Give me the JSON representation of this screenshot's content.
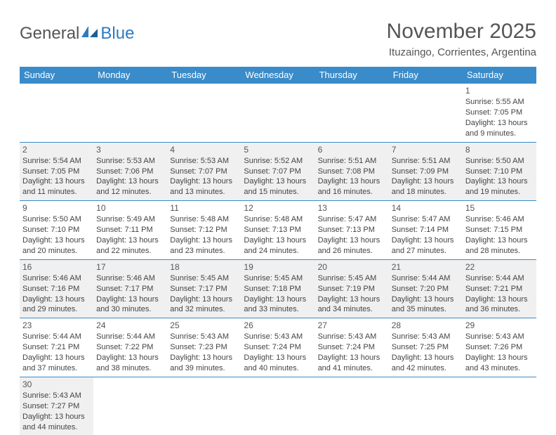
{
  "brand": {
    "part1": "General",
    "part2": "Blue"
  },
  "title": "November 2025",
  "location": "Ituzaingo, Corrientes, Argentina",
  "colors": {
    "header_bg": "#3a8bc9",
    "header_fg": "#ffffff",
    "shade_bg": "#f0f0f0",
    "rule": "#3a8bc9",
    "text": "#444444",
    "title": "#555555"
  },
  "weekdays": [
    "Sunday",
    "Monday",
    "Tuesday",
    "Wednesday",
    "Thursday",
    "Friday",
    "Saturday"
  ],
  "weeks": [
    [
      null,
      null,
      null,
      null,
      null,
      null,
      {
        "n": "1",
        "sr": "Sunrise: 5:55 AM",
        "ss": "Sunset: 7:05 PM",
        "dl": "Daylight: 13 hours and 9 minutes.",
        "shade": false
      }
    ],
    [
      {
        "n": "2",
        "sr": "Sunrise: 5:54 AM",
        "ss": "Sunset: 7:05 PM",
        "dl": "Daylight: 13 hours and 11 minutes.",
        "shade": true
      },
      {
        "n": "3",
        "sr": "Sunrise: 5:53 AM",
        "ss": "Sunset: 7:06 PM",
        "dl": "Daylight: 13 hours and 12 minutes.",
        "shade": true
      },
      {
        "n": "4",
        "sr": "Sunrise: 5:53 AM",
        "ss": "Sunset: 7:07 PM",
        "dl": "Daylight: 13 hours and 13 minutes.",
        "shade": true
      },
      {
        "n": "5",
        "sr": "Sunrise: 5:52 AM",
        "ss": "Sunset: 7:07 PM",
        "dl": "Daylight: 13 hours and 15 minutes.",
        "shade": true
      },
      {
        "n": "6",
        "sr": "Sunrise: 5:51 AM",
        "ss": "Sunset: 7:08 PM",
        "dl": "Daylight: 13 hours and 16 minutes.",
        "shade": true
      },
      {
        "n": "7",
        "sr": "Sunrise: 5:51 AM",
        "ss": "Sunset: 7:09 PM",
        "dl": "Daylight: 13 hours and 18 minutes.",
        "shade": true
      },
      {
        "n": "8",
        "sr": "Sunrise: 5:50 AM",
        "ss": "Sunset: 7:10 PM",
        "dl": "Daylight: 13 hours and 19 minutes.",
        "shade": true
      }
    ],
    [
      {
        "n": "9",
        "sr": "Sunrise: 5:50 AM",
        "ss": "Sunset: 7:10 PM",
        "dl": "Daylight: 13 hours and 20 minutes.",
        "shade": false
      },
      {
        "n": "10",
        "sr": "Sunrise: 5:49 AM",
        "ss": "Sunset: 7:11 PM",
        "dl": "Daylight: 13 hours and 22 minutes.",
        "shade": false
      },
      {
        "n": "11",
        "sr": "Sunrise: 5:48 AM",
        "ss": "Sunset: 7:12 PM",
        "dl": "Daylight: 13 hours and 23 minutes.",
        "shade": false
      },
      {
        "n": "12",
        "sr": "Sunrise: 5:48 AM",
        "ss": "Sunset: 7:13 PM",
        "dl": "Daylight: 13 hours and 24 minutes.",
        "shade": false
      },
      {
        "n": "13",
        "sr": "Sunrise: 5:47 AM",
        "ss": "Sunset: 7:13 PM",
        "dl": "Daylight: 13 hours and 26 minutes.",
        "shade": false
      },
      {
        "n": "14",
        "sr": "Sunrise: 5:47 AM",
        "ss": "Sunset: 7:14 PM",
        "dl": "Daylight: 13 hours and 27 minutes.",
        "shade": false
      },
      {
        "n": "15",
        "sr": "Sunrise: 5:46 AM",
        "ss": "Sunset: 7:15 PM",
        "dl": "Daylight: 13 hours and 28 minutes.",
        "shade": false
      }
    ],
    [
      {
        "n": "16",
        "sr": "Sunrise: 5:46 AM",
        "ss": "Sunset: 7:16 PM",
        "dl": "Daylight: 13 hours and 29 minutes.",
        "shade": true
      },
      {
        "n": "17",
        "sr": "Sunrise: 5:46 AM",
        "ss": "Sunset: 7:17 PM",
        "dl": "Daylight: 13 hours and 30 minutes.",
        "shade": true
      },
      {
        "n": "18",
        "sr": "Sunrise: 5:45 AM",
        "ss": "Sunset: 7:17 PM",
        "dl": "Daylight: 13 hours and 32 minutes.",
        "shade": true
      },
      {
        "n": "19",
        "sr": "Sunrise: 5:45 AM",
        "ss": "Sunset: 7:18 PM",
        "dl": "Daylight: 13 hours and 33 minutes.",
        "shade": true
      },
      {
        "n": "20",
        "sr": "Sunrise: 5:45 AM",
        "ss": "Sunset: 7:19 PM",
        "dl": "Daylight: 13 hours and 34 minutes.",
        "shade": true
      },
      {
        "n": "21",
        "sr": "Sunrise: 5:44 AM",
        "ss": "Sunset: 7:20 PM",
        "dl": "Daylight: 13 hours and 35 minutes.",
        "shade": true
      },
      {
        "n": "22",
        "sr": "Sunrise: 5:44 AM",
        "ss": "Sunset: 7:21 PM",
        "dl": "Daylight: 13 hours and 36 minutes.",
        "shade": true
      }
    ],
    [
      {
        "n": "23",
        "sr": "Sunrise: 5:44 AM",
        "ss": "Sunset: 7:21 PM",
        "dl": "Daylight: 13 hours and 37 minutes.",
        "shade": false
      },
      {
        "n": "24",
        "sr": "Sunrise: 5:44 AM",
        "ss": "Sunset: 7:22 PM",
        "dl": "Daylight: 13 hours and 38 minutes.",
        "shade": false
      },
      {
        "n": "25",
        "sr": "Sunrise: 5:43 AM",
        "ss": "Sunset: 7:23 PM",
        "dl": "Daylight: 13 hours and 39 minutes.",
        "shade": false
      },
      {
        "n": "26",
        "sr": "Sunrise: 5:43 AM",
        "ss": "Sunset: 7:24 PM",
        "dl": "Daylight: 13 hours and 40 minutes.",
        "shade": false
      },
      {
        "n": "27",
        "sr": "Sunrise: 5:43 AM",
        "ss": "Sunset: 7:24 PM",
        "dl": "Daylight: 13 hours and 41 minutes.",
        "shade": false
      },
      {
        "n": "28",
        "sr": "Sunrise: 5:43 AM",
        "ss": "Sunset: 7:25 PM",
        "dl": "Daylight: 13 hours and 42 minutes.",
        "shade": false
      },
      {
        "n": "29",
        "sr": "Sunrise: 5:43 AM",
        "ss": "Sunset: 7:26 PM",
        "dl": "Daylight: 13 hours and 43 minutes.",
        "shade": false
      }
    ],
    [
      {
        "n": "30",
        "sr": "Sunrise: 5:43 AM",
        "ss": "Sunset: 7:27 PM",
        "dl": "Daylight: 13 hours and 44 minutes.",
        "shade": true
      },
      null,
      null,
      null,
      null,
      null,
      null
    ]
  ]
}
